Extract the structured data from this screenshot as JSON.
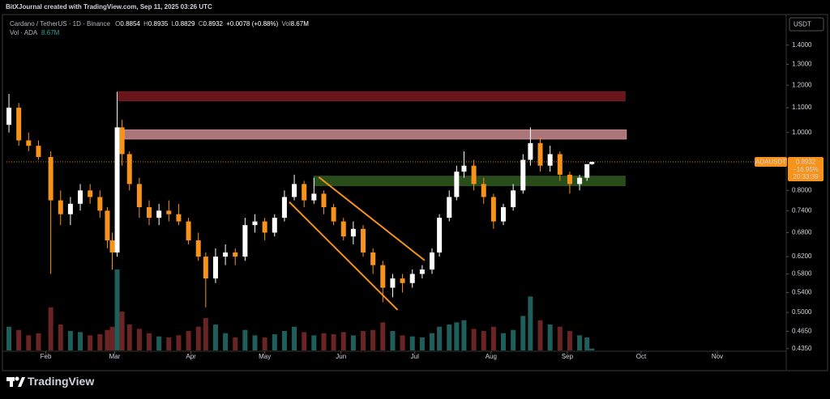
{
  "header": {
    "text": "BitXJournal created with TradingView.com, Sep 11, 2025 03:26 UTC"
  },
  "chart_data": {
    "type": "candlestick",
    "symbol": "Cardano / TetherUS · 1D · Binance",
    "legend_keys": [
      "O",
      "H",
      "L",
      "C"
    ],
    "change": "+0.0078 (+0.88%)",
    "volume_key": "Vol",
    "volume_value_label": "8.67M",
    "volume_title": "Vol · ADA",
    "currency": "USDT",
    "ticker": "ADAUSDT",
    "change_percent": "−16.95%",
    "countdown": "20:33:39",
    "x": [
      17,
      21,
      25,
      29,
      34,
      38,
      42,
      46,
      50,
      54,
      57,
      59,
      61,
      63,
      66,
      70,
      74,
      78,
      82,
      86,
      90,
      94,
      97,
      101,
      105,
      109,
      113,
      117,
      121,
      125,
      129,
      133,
      137,
      141,
      145,
      149,
      153,
      157,
      161,
      165,
      169,
      173,
      177,
      181,
      185,
      189,
      192,
      196,
      199,
      202,
      206,
      210,
      214,
      218,
      222,
      226,
      229,
      233,
      237,
      241,
      245,
      249,
      252,
      254
    ],
    "open": [
      1.03,
      1.1,
      0.97,
      0.95,
      0.91,
      0.77,
      0.73,
      0.76,
      0.8,
      0.78,
      0.74,
      0.66,
      0.63,
      1.02,
      0.92,
      0.82,
      0.75,
      0.72,
      0.74,
      0.73,
      0.71,
      0.66,
      0.62,
      0.57,
      0.62,
      0.63,
      0.62,
      0.7,
      0.71,
      0.68,
      0.72,
      0.78,
      0.82,
      0.77,
      0.79,
      0.75,
      0.71,
      0.67,
      0.69,
      0.63,
      0.6,
      0.55,
      0.57,
      0.56,
      0.58,
      0.59,
      0.63,
      0.72,
      0.78,
      0.86,
      0.88,
      0.82,
      0.78,
      0.71,
      0.75,
      0.8,
      0.9,
      0.96,
      0.88,
      0.92,
      0.85,
      0.82,
      0.84,
      0.8854
    ],
    "high": [
      1.16,
      1.12,
      1.0,
      0.97,
      0.93,
      0.8,
      0.78,
      0.82,
      0.82,
      0.8,
      0.75,
      0.68,
      1.17,
      1.05,
      0.93,
      0.84,
      0.77,
      0.76,
      0.77,
      0.76,
      0.72,
      0.68,
      0.63,
      0.64,
      0.65,
      0.64,
      0.72,
      0.73,
      0.72,
      0.73,
      0.8,
      0.85,
      0.83,
      0.84,
      0.8,
      0.76,
      0.72,
      0.71,
      0.7,
      0.64,
      0.61,
      0.58,
      0.58,
      0.59,
      0.6,
      0.64,
      0.73,
      0.8,
      0.88,
      0.93,
      0.9,
      0.84,
      0.79,
      0.76,
      0.82,
      0.92,
      1.02,
      0.98,
      0.95,
      0.93,
      0.86,
      0.85,
      0.88,
      0.8935
    ],
    "low": [
      1.0,
      0.95,
      0.93,
      0.9,
      0.58,
      0.7,
      0.7,
      0.74,
      0.76,
      0.72,
      0.64,
      0.59,
      0.62,
      0.88,
      0.8,
      0.72,
      0.7,
      0.7,
      0.71,
      0.7,
      0.65,
      0.61,
      0.51,
      0.56,
      0.6,
      0.6,
      0.61,
      0.68,
      0.66,
      0.67,
      0.71,
      0.77,
      0.75,
      0.76,
      0.73,
      0.7,
      0.66,
      0.65,
      0.62,
      0.58,
      0.52,
      0.53,
      0.54,
      0.55,
      0.57,
      0.58,
      0.62,
      0.71,
      0.77,
      0.84,
      0.8,
      0.76,
      0.69,
      0.7,
      0.74,
      0.79,
      0.88,
      0.86,
      0.86,
      0.83,
      0.79,
      0.8,
      0.83,
      0.8829
    ],
    "close": [
      1.1,
      0.97,
      0.95,
      0.91,
      0.77,
      0.73,
      0.76,
      0.8,
      0.78,
      0.74,
      0.66,
      0.63,
      1.02,
      0.92,
      0.82,
      0.75,
      0.72,
      0.74,
      0.73,
      0.71,
      0.66,
      0.62,
      0.57,
      0.62,
      0.63,
      0.62,
      0.7,
      0.71,
      0.68,
      0.72,
      0.78,
      0.82,
      0.77,
      0.79,
      0.75,
      0.71,
      0.67,
      0.69,
      0.63,
      0.6,
      0.55,
      0.57,
      0.56,
      0.58,
      0.59,
      0.63,
      0.72,
      0.78,
      0.86,
      0.88,
      0.82,
      0.78,
      0.71,
      0.75,
      0.8,
      0.9,
      0.96,
      0.88,
      0.92,
      0.85,
      0.82,
      0.84,
      0.8854,
      0.8932
    ],
    "volume": [
      110,
      95,
      70,
      80,
      200,
      120,
      90,
      85,
      70,
      75,
      95,
      110,
      375,
      180,
      120,
      100,
      80,
      65,
      60,
      70,
      90,
      110,
      150,
      120,
      80,
      60,
      95,
      70,
      60,
      75,
      90,
      110,
      85,
      70,
      80,
      75,
      85,
      70,
      90,
      95,
      130,
      90,
      70,
      65,
      60,
      80,
      110,
      120,
      130,
      140,
      100,
      90,
      110,
      80,
      95,
      160,
      250,
      140,
      120,
      110,
      90,
      70,
      60,
      8.67
    ],
    "up_color": "#ffffff",
    "down_color": "#f7931a",
    "volume_up_color": "#1f5f5b",
    "volume_down_color": "#6b2424",
    "log_scale": true,
    "ylim": [
      0.432,
      1.565
    ],
    "yticks": [
      {
        "value": 1.4,
        "label": "1.4000"
      },
      {
        "value": 1.3,
        "label": "1.3000"
      },
      {
        "value": 1.2,
        "label": "1.2000"
      },
      {
        "value": 1.1,
        "label": "1.1000"
      },
      {
        "value": 1.0,
        "label": "1.0000"
      },
      {
        "value": 0.8,
        "label": "0.8000"
      },
      {
        "value": 0.74,
        "label": "0.7400"
      },
      {
        "value": 0.68,
        "label": "0.6800"
      },
      {
        "value": 0.62,
        "label": "0.6200"
      },
      {
        "value": 0.58,
        "label": "0.5800"
      },
      {
        "value": 0.54,
        "label": "0.5400"
      },
      {
        "value": 0.5,
        "label": "0.5000"
      },
      {
        "value": 0.465,
        "label": "0.4650"
      },
      {
        "value": 0.435,
        "label": "0.4350"
      }
    ],
    "xlim": [
      16,
      333
    ],
    "xticks": [
      {
        "value": 32,
        "label": "Feb"
      },
      {
        "value": 60,
        "label": "Mar"
      },
      {
        "value": 91,
        "label": "Apr"
      },
      {
        "value": 121,
        "label": "May"
      },
      {
        "value": 152,
        "label": "Jun"
      },
      {
        "value": 182,
        "label": "Jul"
      },
      {
        "value": 213,
        "label": "Aug"
      },
      {
        "value": 244,
        "label": "Sep"
      },
      {
        "value": 274,
        "label": "Oct"
      },
      {
        "value": 305,
        "label": "Nov"
      }
    ],
    "volume_ylim": [
      0,
      450
    ],
    "zones": [
      {
        "x": [
          61.5,
          267.5
        ],
        "y": [
          1.13,
          1.17
        ],
        "color": "#7a1a1f"
      },
      {
        "x": [
          64,
          268
        ],
        "y": [
          0.975,
          1.01
        ],
        "color": "#c98a8e"
      },
      {
        "x": [
          141,
          267.5
        ],
        "y": [
          0.815,
          0.845
        ],
        "color": "#2f5a1f"
      }
    ],
    "trend_lines": [
      {
        "x": [
          143,
          186
        ],
        "y": [
          0.842,
          0.611
        ],
        "color": "#f7931a"
      },
      {
        "x": [
          131,
          175
        ],
        "y": [
          0.765,
          0.505
        ],
        "color": "#f7931a"
      }
    ]
  },
  "footer": {
    "brand": "TradingView"
  }
}
